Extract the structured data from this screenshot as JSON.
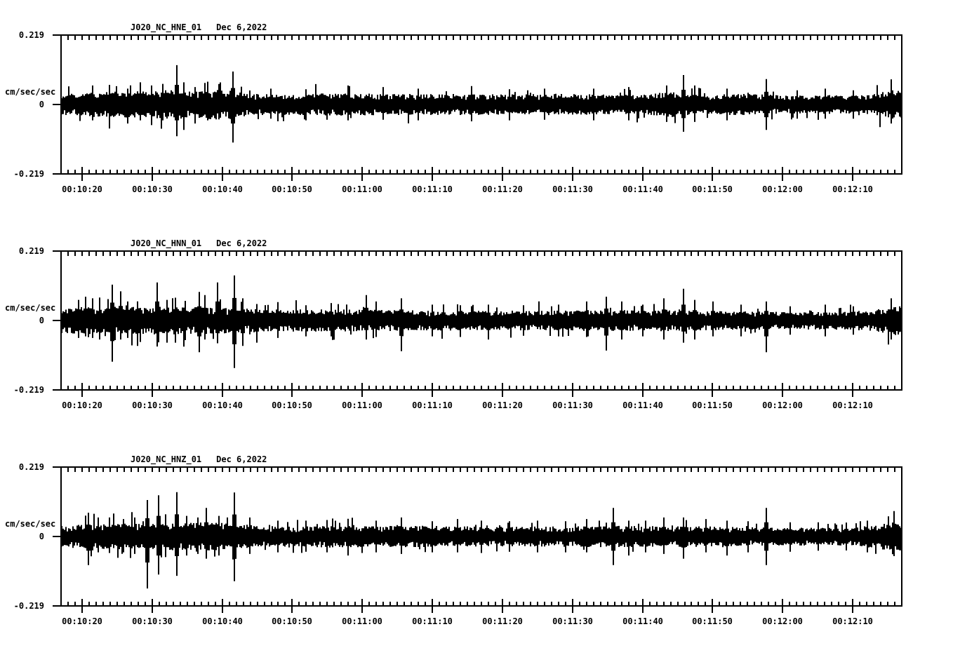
{
  "colors": {
    "background": "#ffffff",
    "ink": "#000000"
  },
  "axis": {
    "y_max_label": "0.219",
    "y_zero_label": "0",
    "y_min_label": "-0.219",
    "y_unit_label": "cm/sec/sec",
    "x_tick_labels": [
      "00:10:20",
      "00:10:30",
      "00:10:40",
      "00:10:50",
      "00:11:00",
      "00:11:10",
      "00:11:20",
      "00:11:30",
      "00:11:40",
      "00:11:50",
      "00:12:00",
      "00:12:10"
    ]
  },
  "panels": [
    {
      "title": "J020_NC_HNE_01",
      "date": "Dec 6,2022",
      "seed": 101
    },
    {
      "title": "J020_NC_HNN_01",
      "date": "Dec 6,2022",
      "seed": 202
    },
    {
      "title": "J020_NC_HNZ_01",
      "date": "Dec 6,2022",
      "seed": 303
    }
  ],
  "chart_data": [
    {
      "type": "line",
      "title": "J020_NC_HNE_01",
      "subtitle": "Dec 6,2022",
      "ylabel": "cm/sec/sec",
      "ylim": [
        -0.219,
        0.219
      ],
      "y_ticks": [
        -0.219,
        0,
        0.219
      ],
      "x_start": "00:10:17",
      "x_end": "00:12:17",
      "x_major_tick_interval_sec": 10,
      "x_minor_tick_interval_sec": 1,
      "x_tick_labels": [
        "00:10:20",
        "00:10:30",
        "00:10:40",
        "00:10:50",
        "00:11:00",
        "00:11:10",
        "00:11:20",
        "00:11:30",
        "00:11:40",
        "00:11:50",
        "00:12:00",
        "00:12:10"
      ],
      "series": [
        {
          "name": "J020_NC_HNE_01",
          "units": "cm/sec/sec",
          "representation": "amplitude_envelope_t_sec_after_00_10_00",
          "envelope": [
            [
              17,
              0.034
            ],
            [
              22,
              0.04
            ],
            [
              28,
              0.042
            ],
            [
              33,
              0.046
            ],
            [
              36,
              0.042
            ],
            [
              40,
              0.05
            ],
            [
              42,
              0.046
            ],
            [
              44,
              0.034
            ],
            [
              50,
              0.033
            ],
            [
              58,
              0.036
            ],
            [
              64,
              0.033
            ],
            [
              70,
              0.034
            ],
            [
              76,
              0.033
            ],
            [
              82,
              0.032
            ],
            [
              88,
              0.034
            ],
            [
              94,
              0.032
            ],
            [
              100,
              0.031
            ],
            [
              104,
              0.04
            ],
            [
              106,
              0.036
            ],
            [
              108,
              0.031
            ],
            [
              112,
              0.033
            ],
            [
              116,
              0.034
            ],
            [
              119,
              0.03
            ],
            [
              123,
              0.028
            ],
            [
              127,
              0.03
            ],
            [
              131,
              0.028
            ],
            [
              134,
              0.038
            ],
            [
              137,
              0.05
            ]
          ],
          "spikes": [
            [
              21.5,
              0.06,
              -0.05
            ],
            [
              24,
              0.062,
              -0.055
            ],
            [
              26.5,
              0.05,
              -0.06
            ],
            [
              28.3,
              0.07,
              -0.05
            ],
            [
              30,
              0.06,
              -0.065
            ],
            [
              31.5,
              0.065,
              -0.05
            ],
            [
              33.5,
              0.124,
              -0.1
            ],
            [
              34.6,
              0.07,
              -0.08
            ],
            [
              36.2,
              0.055,
              -0.06
            ],
            [
              38,
              0.072,
              -0.05
            ],
            [
              41.6,
              0.104,
              -0.12
            ],
            [
              47,
              0.05,
              -0.045
            ],
            [
              52,
              0.048,
              -0.05
            ],
            [
              58,
              0.06,
              -0.05
            ],
            [
              63,
              0.055,
              -0.048
            ],
            [
              68,
              0.05,
              -0.05
            ],
            [
              75.5,
              0.058,
              -0.053
            ],
            [
              81,
              0.048,
              -0.05
            ],
            [
              86,
              0.05,
              -0.048
            ],
            [
              93,
              0.05,
              -0.05
            ],
            [
              98,
              0.055,
              -0.05
            ],
            [
              103.5,
              0.06,
              -0.055
            ],
            [
              105.9,
              0.093,
              -0.086
            ],
            [
              107.5,
              0.06,
              -0.055
            ],
            [
              112,
              0.05,
              -0.05
            ],
            [
              117.7,
              0.08,
              -0.08
            ],
            [
              122,
              0.045,
              -0.045
            ],
            [
              126,
              0.05,
              -0.045
            ],
            [
              130,
              0.045,
              -0.045
            ],
            [
              135.5,
              0.065,
              -0.06
            ]
          ]
        }
      ]
    },
    {
      "type": "line",
      "title": "J020_NC_HNN_01",
      "subtitle": "Dec 6,2022",
      "ylabel": "cm/sec/sec",
      "ylim": [
        -0.219,
        0.219
      ],
      "y_ticks": [
        -0.219,
        0,
        0.219
      ],
      "x_start": "00:10:17",
      "x_end": "00:12:17",
      "x_major_tick_interval_sec": 10,
      "x_minor_tick_interval_sec": 1,
      "x_tick_labels": [
        "00:10:20",
        "00:10:30",
        "00:10:40",
        "00:10:50",
        "00:11:00",
        "00:11:10",
        "00:11:20",
        "00:11:30",
        "00:11:40",
        "00:11:50",
        "00:12:00",
        "00:12:10"
      ],
      "series": [
        {
          "name": "J020_NC_HNN_01",
          "units": "cm/sec/sec",
          "representation": "amplitude_envelope_t_sec_after_00_10_00",
          "envelope": [
            [
              17,
              0.04
            ],
            [
              22,
              0.044
            ],
            [
              30,
              0.044
            ],
            [
              38,
              0.044
            ],
            [
              42,
              0.04
            ],
            [
              46,
              0.036
            ],
            [
              55,
              0.035
            ],
            [
              65,
              0.033
            ],
            [
              75,
              0.031
            ],
            [
              85,
              0.031
            ],
            [
              92,
              0.033
            ],
            [
              98,
              0.033
            ],
            [
              104,
              0.034
            ],
            [
              110,
              0.031
            ],
            [
              116,
              0.03
            ],
            [
              122,
              0.028
            ],
            [
              128,
              0.029
            ],
            [
              133,
              0.033
            ],
            [
              135,
              0.042
            ],
            [
              137,
              0.05
            ]
          ],
          "spikes": [
            [
              19.5,
              0.065,
              -0.055
            ],
            [
              20.5,
              0.075,
              -0.05
            ],
            [
              21.5,
              0.07,
              -0.055
            ],
            [
              22.5,
              0.06,
              -0.06
            ],
            [
              24.3,
              0.113,
              -0.13
            ],
            [
              25.5,
              0.092,
              -0.06
            ],
            [
              26.5,
              0.06,
              -0.055
            ],
            [
              28,
              0.06,
              -0.08
            ],
            [
              30.7,
              0.12,
              -0.082
            ],
            [
              32.2,
              0.065,
              -0.07
            ],
            [
              33.4,
              0.072,
              -0.07
            ],
            [
              34.8,
              0.062,
              -0.062
            ],
            [
              36.7,
              0.09,
              -0.1
            ],
            [
              37.6,
              0.08,
              -0.06
            ],
            [
              39.3,
              0.12,
              -0.072
            ],
            [
              41.8,
              0.142,
              -0.15
            ],
            [
              43,
              0.07,
              -0.08
            ],
            [
              45,
              0.052,
              -0.07
            ],
            [
              48,
              0.05,
              -0.055
            ],
            [
              52,
              0.048,
              -0.05
            ],
            [
              55.5,
              0.055,
              -0.05
            ],
            [
              60.5,
              0.08,
              -0.06
            ],
            [
              62,
              0.06,
              -0.052
            ],
            [
              65.5,
              0.07,
              -0.097
            ],
            [
              70,
              0.05,
              -0.05
            ],
            [
              74,
              0.048,
              -0.052
            ],
            [
              78,
              0.05,
              -0.06
            ],
            [
              83,
              0.048,
              -0.048
            ],
            [
              88,
              0.05,
              -0.05
            ],
            [
              92,
              0.06,
              -0.052
            ],
            [
              94.9,
              0.075,
              -0.095
            ],
            [
              97,
              0.06,
              -0.06
            ],
            [
              100,
              0.05,
              -0.05
            ],
            [
              103,
              0.07,
              -0.06
            ],
            [
              105.9,
              0.1,
              -0.07
            ],
            [
              107.5,
              0.065,
              -0.06
            ],
            [
              110,
              0.06,
              -0.05
            ],
            [
              114,
              0.05,
              -0.05
            ],
            [
              117.7,
              0.06,
              -0.1
            ],
            [
              121,
              0.045,
              -0.045
            ],
            [
              126,
              0.05,
              -0.05
            ],
            [
              130,
              0.045,
              -0.045
            ],
            [
              135.5,
              0.07,
              -0.06
            ]
          ]
        }
      ]
    },
    {
      "type": "line",
      "title": "J020_NC_HNZ_01",
      "subtitle": "Dec 6,2022",
      "ylabel": "cm/sec/sec",
      "ylim": [
        -0.219,
        0.219
      ],
      "y_ticks": [
        -0.219,
        0,
        0.219
      ],
      "x_start": "00:10:17",
      "x_end": "00:12:17",
      "x_major_tick_interval_sec": 10,
      "x_minor_tick_interval_sec": 1,
      "x_tick_labels": [
        "00:10:20",
        "00:10:30",
        "00:10:40",
        "00:10:50",
        "00:11:00",
        "00:11:10",
        "00:11:20",
        "00:11:30",
        "00:11:40",
        "00:11:50",
        "00:12:00",
        "00:12:10"
      ],
      "series": [
        {
          "name": "J020_NC_HNZ_01",
          "units": "cm/sec/sec",
          "representation": "amplitude_envelope_t_sec_after_00_10_00",
          "envelope": [
            [
              17,
              0.034
            ],
            [
              22,
              0.04
            ],
            [
              28,
              0.041
            ],
            [
              34,
              0.044
            ],
            [
              40,
              0.044
            ],
            [
              43,
              0.038
            ],
            [
              48,
              0.032
            ],
            [
              55,
              0.035
            ],
            [
              62,
              0.033
            ],
            [
              68,
              0.034
            ],
            [
              75,
              0.032
            ],
            [
              82,
              0.031
            ],
            [
              88,
              0.032
            ],
            [
              94,
              0.034
            ],
            [
              100,
              0.033
            ],
            [
              106,
              0.034
            ],
            [
              112,
              0.031
            ],
            [
              118,
              0.029
            ],
            [
              124,
              0.028
            ],
            [
              130,
              0.029
            ],
            [
              134,
              0.04
            ],
            [
              137,
              0.05
            ]
          ],
          "spikes": [
            [
              21,
              0.075,
              -0.09
            ],
            [
              22.3,
              0.06,
              -0.05
            ],
            [
              24,
              0.06,
              -0.052
            ],
            [
              26,
              0.055,
              -0.05
            ],
            [
              27.5,
              0.06,
              -0.055
            ],
            [
              29.3,
              0.115,
              -0.164
            ],
            [
              31,
              0.13,
              -0.12
            ],
            [
              32,
              0.07,
              -0.065
            ],
            [
              33.6,
              0.14,
              -0.124
            ],
            [
              35,
              0.065,
              -0.06
            ],
            [
              36.5,
              0.06,
              -0.055
            ],
            [
              37.8,
              0.09,
              -0.07
            ],
            [
              39.5,
              0.065,
              -0.06
            ],
            [
              41.7,
              0.139,
              -0.141
            ],
            [
              44,
              0.06,
              -0.055
            ],
            [
              48,
              0.05,
              -0.05
            ],
            [
              52,
              0.05,
              -0.048
            ],
            [
              55,
              0.052,
              -0.05
            ],
            [
              58,
              0.056,
              -0.06
            ],
            [
              62,
              0.05,
              -0.05
            ],
            [
              65.5,
              0.06,
              -0.055
            ],
            [
              70,
              0.048,
              -0.05
            ],
            [
              73.5,
              0.055,
              -0.05
            ],
            [
              77,
              0.05,
              -0.052
            ],
            [
              81,
              0.048,
              -0.048
            ],
            [
              85,
              0.05,
              -0.05
            ],
            [
              89,
              0.048,
              -0.05
            ],
            [
              92,
              0.055,
              -0.05
            ],
            [
              95.8,
              0.09,
              -0.09
            ],
            [
              98,
              0.05,
              -0.06
            ],
            [
              100.5,
              0.05,
              -0.05
            ],
            [
              103,
              0.06,
              -0.055
            ],
            [
              105.9,
              0.06,
              -0.07
            ],
            [
              109,
              0.055,
              -0.05
            ],
            [
              112,
              0.05,
              -0.06
            ],
            [
              115,
              0.048,
              -0.05
            ],
            [
              117.7,
              0.09,
              -0.09
            ],
            [
              121,
              0.045,
              -0.048
            ],
            [
              125,
              0.045,
              -0.045
            ],
            [
              129,
              0.044,
              -0.044
            ],
            [
              132,
              0.05,
              -0.05
            ],
            [
              135.8,
              0.08,
              -0.062
            ]
          ]
        }
      ]
    }
  ]
}
